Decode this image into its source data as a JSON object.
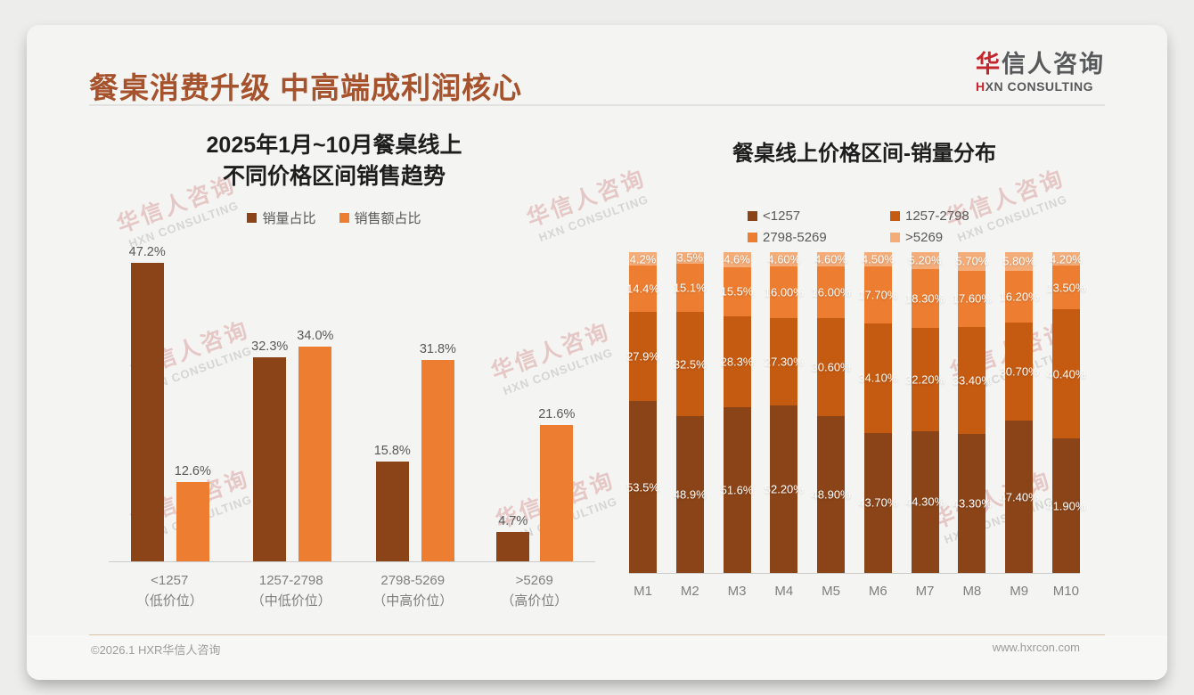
{
  "page": {
    "title": "餐桌消费升级 中高端成利润核心",
    "logo": {
      "zh_red": "华",
      "zh_rest": "信人咨询",
      "en_red": "H",
      "en_rest": "XN CONSULTING"
    },
    "watermark": {
      "line1": "华信人咨询",
      "line2": "HXN CONSULTING"
    },
    "footer_left": "©2026.1 HXR华信人咨询",
    "footer_right": "www.hxrcon.com"
  },
  "colors": {
    "title_brown": "#A6522C",
    "dark_brown": "#8A4418",
    "dark_orange": "#C55A11",
    "orange": "#ED7D31",
    "light_tan": "#F4AC79",
    "logo_red": "#C4262E",
    "logo_gray": "#58595B"
  },
  "chart_data": [
    {
      "type": "bar",
      "title_lines": [
        "2025年1月~10月餐桌线上",
        "不同价格区间销售趋势"
      ],
      "categories": [
        "<1257",
        "1257-2798",
        "2798-5269",
        ">5269"
      ],
      "category_sublabels": [
        "（低价位）",
        "（中低价位）",
        "（中高价位）",
        "（高价位）"
      ],
      "series": [
        {
          "name": "销量占比",
          "color_key": "dark_brown",
          "values": [
            47.2,
            32.3,
            15.8,
            4.7
          ],
          "labels": [
            "47.2%",
            "32.3%",
            "15.8%",
            "4.7%"
          ]
        },
        {
          "name": "销售额占比",
          "color_key": "orange",
          "values": [
            12.6,
            34.0,
            31.8,
            21.6
          ],
          "labels": [
            "12.6%",
            "34.0%",
            "31.8%",
            "21.6%"
          ]
        }
      ],
      "ylim": [
        0,
        50
      ],
      "grid": false,
      "legend_position": "top"
    },
    {
      "type": "stacked-bar",
      "title": "餐桌线上价格区间-销量分布",
      "categories": [
        "M1",
        "M2",
        "M3",
        "M4",
        "M5",
        "M6",
        "M7",
        "M8",
        "M9",
        "M10"
      ],
      "series": [
        {
          "name": "<1257",
          "color_key": "dark_brown",
          "values": [
            53.5,
            48.9,
            51.6,
            52.2,
            48.9,
            43.7,
            44.3,
            43.3,
            47.4,
            41.9
          ],
          "labels": [
            "53.5%",
            "48.9%",
            "51.6%",
            "52.20%",
            "48.90%",
            "43.70%",
            "44.30%",
            "43.30%",
            "47.40%",
            "41.90%"
          ]
        },
        {
          "name": "1257-2798",
          "color_key": "dark_orange",
          "values": [
            27.9,
            32.5,
            28.3,
            27.3,
            30.6,
            34.1,
            32.2,
            33.4,
            30.7,
            40.4
          ],
          "labels": [
            "27.9%",
            "32.5%",
            "28.3%",
            "27.30%",
            "30.60%",
            "34.10%",
            "32.20%",
            "33.40%",
            "30.70%",
            "40.40%"
          ]
        },
        {
          "name": "2798-5269",
          "color_key": "orange",
          "values": [
            14.4,
            15.1,
            15.5,
            16.0,
            16.0,
            17.7,
            18.3,
            17.6,
            16.2,
            13.5
          ],
          "labels": [
            "14.4%",
            "15.1%",
            "15.5%",
            "16.00%",
            "16.00%",
            "17.70%",
            "18.30%",
            "17.60%",
            "16.20%",
            "13.50%"
          ]
        },
        {
          "name": ">5269",
          "color_key": "light_tan",
          "values": [
            4.2,
            3.5,
            4.6,
            4.6,
            4.6,
            4.5,
            5.2,
            5.7,
            5.8,
            4.2
          ],
          "labels": [
            "4.2%",
            "3.5%",
            "4.6%",
            "4.60%",
            "4.60%",
            "4.50%",
            "5.20%",
            "5.70%",
            "5.80%",
            "4.20%"
          ]
        }
      ],
      "ylim": [
        0,
        100
      ],
      "grid": false,
      "legend_position": "top"
    }
  ]
}
